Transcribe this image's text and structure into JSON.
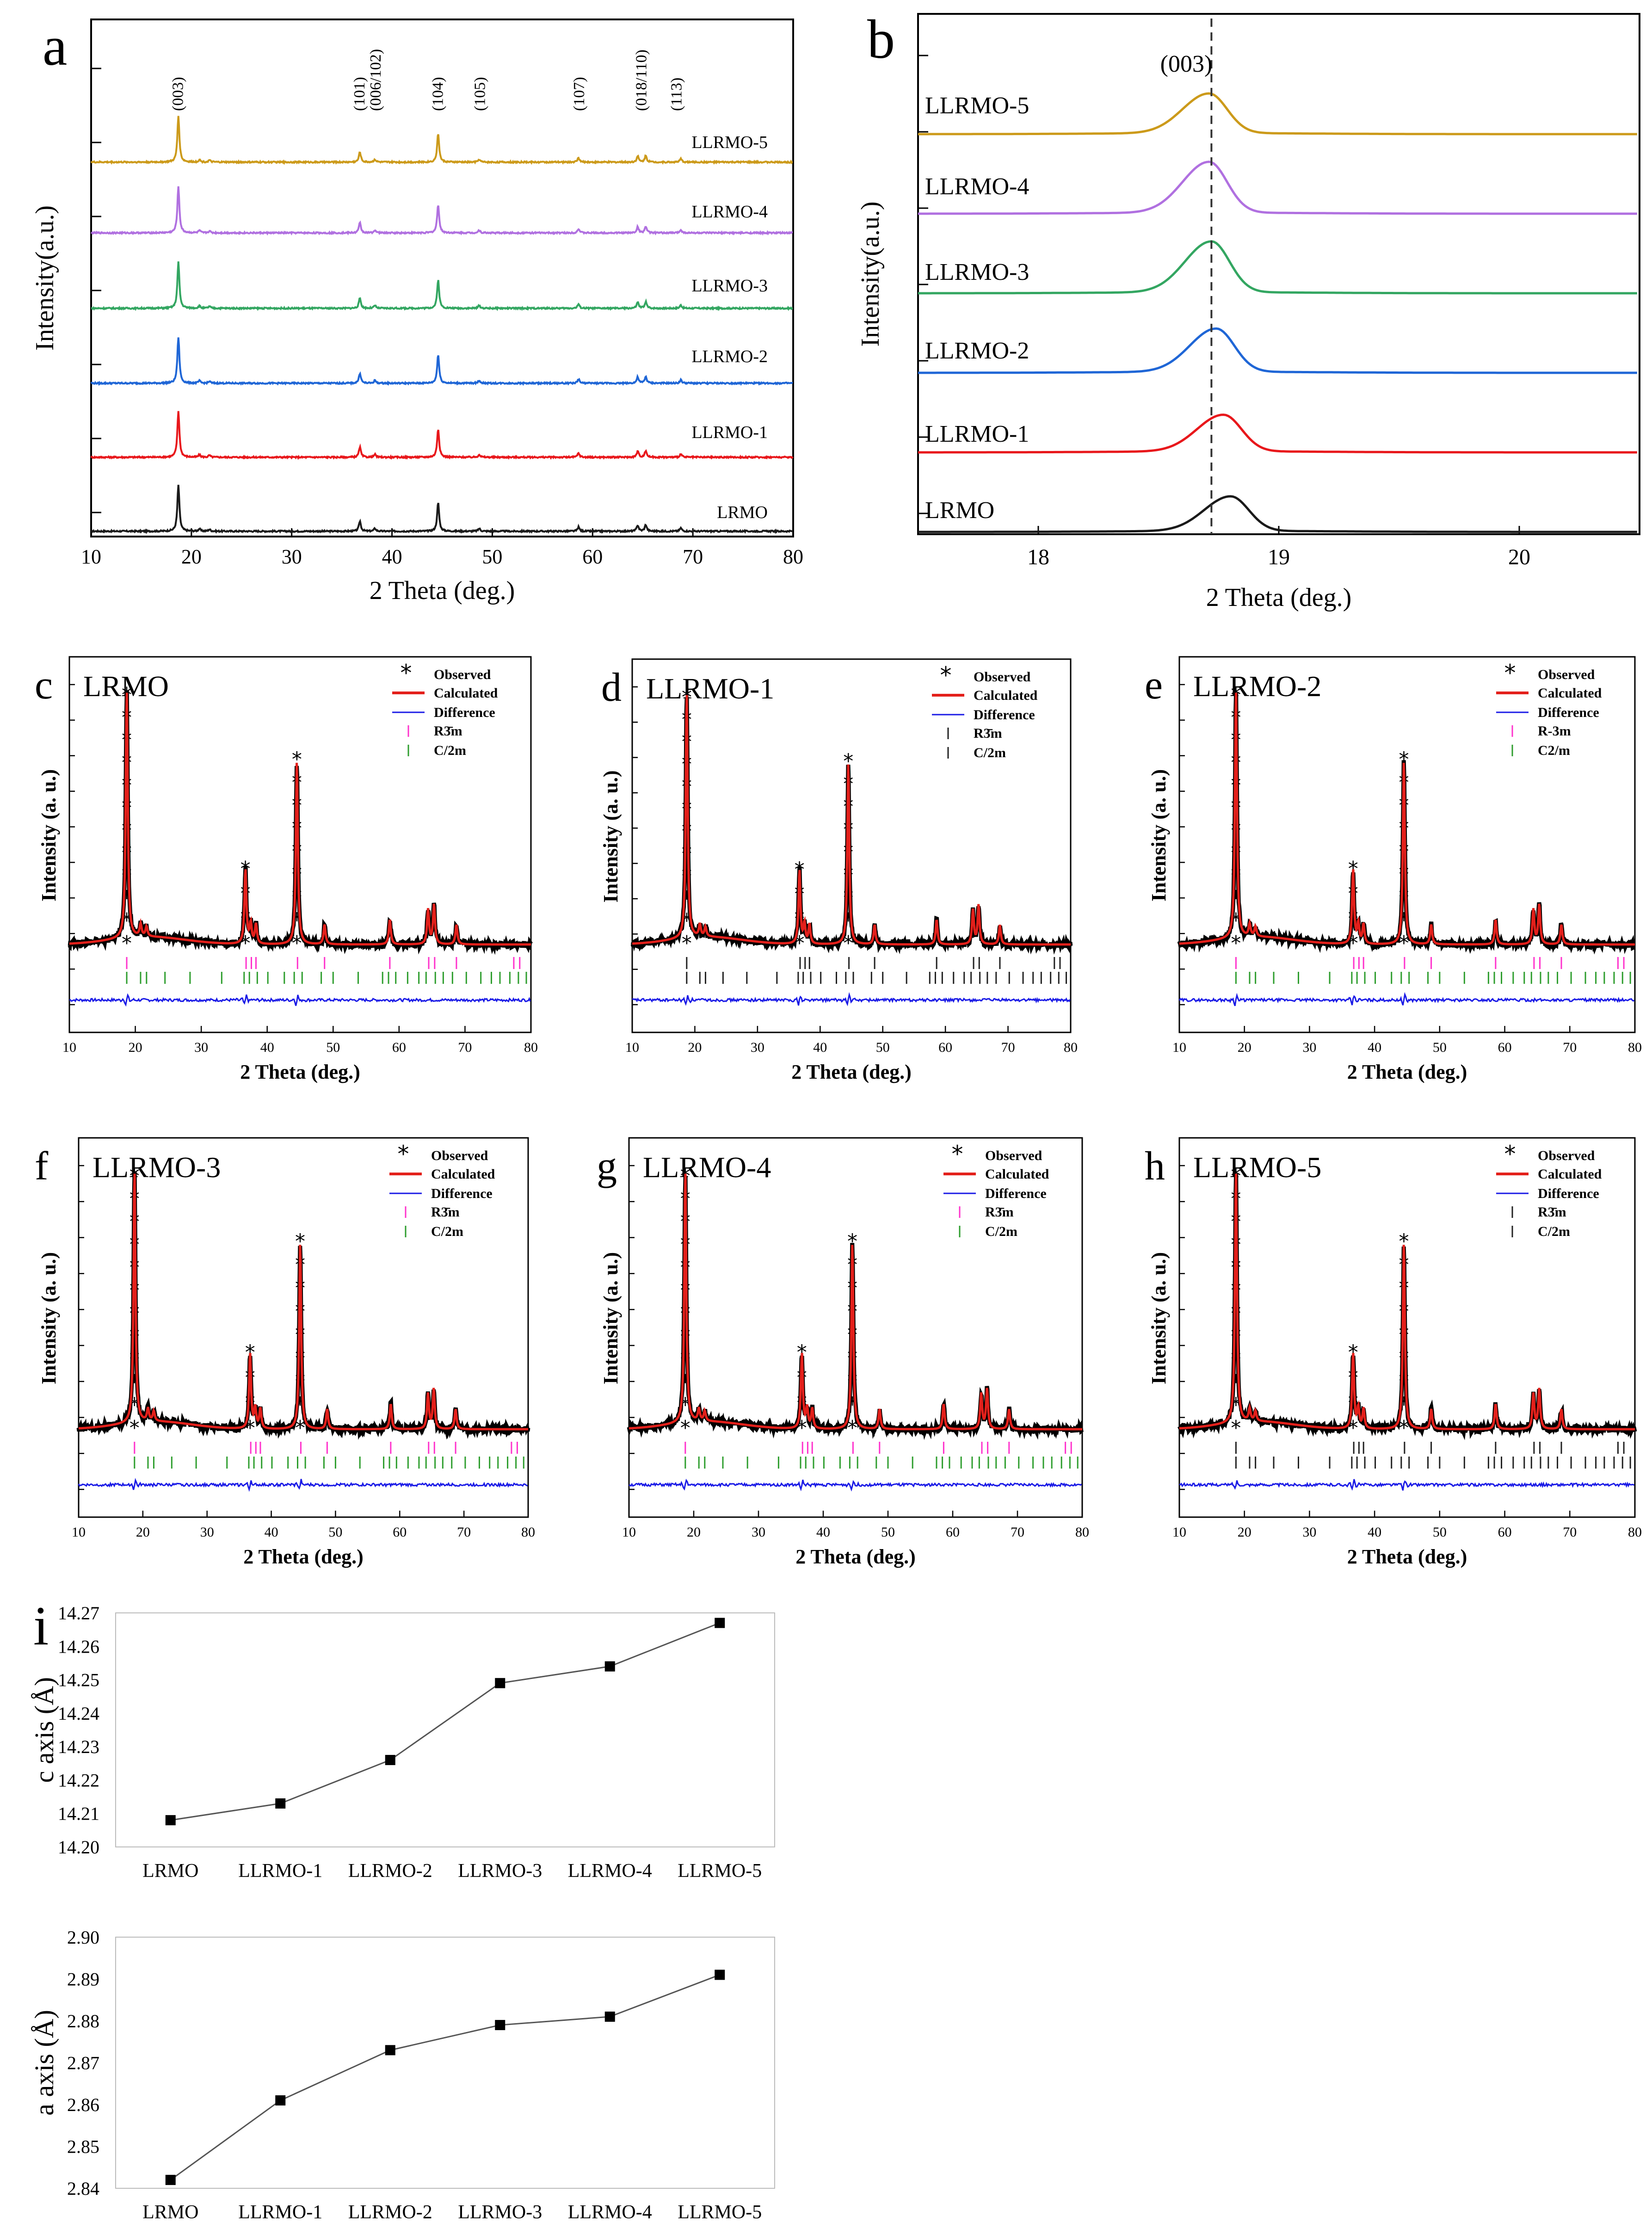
{
  "colors": {
    "LRMO": "#1a1a1a",
    "LLRMO-1": "#e8171b",
    "LLRMO-2": "#1f66d6",
    "LLRMO-3": "#33a661",
    "LLRMO-4": "#b070e0",
    "LLRMO-5": "#cc9a1a",
    "observed": "#000000",
    "calculated": "#e3201b",
    "difference": "#1a1ae6",
    "r3m_pink": "#ff33cc",
    "c2m_green": "#2f9e2f",
    "grey_line": "#555555"
  },
  "chart_data": [
    {
      "id": "a",
      "type": "line",
      "panel_letter": "a",
      "xlabel": "2 Theta (deg.)",
      "ylabel": "Intensity(a.u.)",
      "xlim": [
        10,
        80
      ],
      "xticks": [
        10,
        20,
        30,
        40,
        50,
        60,
        70,
        80
      ],
      "series": [
        "LRMO",
        "LLRMO-1",
        "LLRMO-2",
        "LLRMO-3",
        "LLRMO-4",
        "LLRMO-5"
      ],
      "peaks": [
        {
          "pos": 18.7,
          "h": 1.0
        },
        {
          "pos": 20.8,
          "h": 0.05
        },
        {
          "pos": 21.8,
          "h": 0.04
        },
        {
          "pos": 36.8,
          "h": 0.22
        },
        {
          "pos": 38.3,
          "h": 0.06
        },
        {
          "pos": 44.6,
          "h": 0.62
        },
        {
          "pos": 48.7,
          "h": 0.06
        },
        {
          "pos": 58.6,
          "h": 0.09
        },
        {
          "pos": 64.5,
          "h": 0.13
        },
        {
          "pos": 65.3,
          "h": 0.14
        },
        {
          "pos": 68.8,
          "h": 0.07
        }
      ],
      "hkl_labels": [
        {
          "label": "(003)",
          "pos": 18.7
        },
        {
          "label": "(101)",
          "pos": 36.8
        },
        {
          "label": "(006/102)",
          "pos": 38.4
        },
        {
          "label": "(104)",
          "pos": 44.6
        },
        {
          "label": "(105)",
          "pos": 48.8
        },
        {
          "label": "(107)",
          "pos": 58.7
        },
        {
          "label": "(018/110)",
          "pos": 64.9
        },
        {
          "label": "(113)",
          "pos": 68.4
        }
      ]
    },
    {
      "id": "b",
      "type": "line",
      "panel_letter": "b",
      "xlabel": "2 Theta (deg.)",
      "ylabel": "Intensity(a.u.)",
      "xlim": [
        17.5,
        20.5
      ],
      "xticks": [
        18,
        19,
        20
      ],
      "reference_line_x": 18.72,
      "annotation": "(003)",
      "series": [
        {
          "name": "LRMO",
          "center": 18.8,
          "height": 0.68
        },
        {
          "name": "LLRMO-1",
          "center": 18.77,
          "height": 0.72
        },
        {
          "name": "LLRMO-2",
          "center": 18.74,
          "height": 0.85
        },
        {
          "name": "LLRMO-3",
          "center": 18.72,
          "height": 1.0
        },
        {
          "name": "LLRMO-4",
          "center": 18.71,
          "height": 1.0
        },
        {
          "name": "LLRMO-5",
          "center": 18.71,
          "height": 0.78
        }
      ]
    },
    {
      "id": "c",
      "type": "line",
      "panel_letter": "c",
      "sample": "LRMO",
      "xlabel": "2 Theta (deg.)",
      "ylabel": "Intensity (a. u.)",
      "xlim": [
        10,
        80
      ],
      "xticks": [
        10,
        20,
        30,
        40,
        50,
        60,
        70,
        80
      ],
      "legend": [
        "Observed",
        "Calculated",
        "Difference",
        "R3̄m",
        "C/2m"
      ],
      "legend_style": "pink-r3m"
    },
    {
      "id": "d",
      "type": "line",
      "panel_letter": "d",
      "sample": "LLRMO-1",
      "xlabel": "2 Theta (deg.)",
      "ylabel": "Intensity (a. u.)",
      "xlim": [
        10,
        80
      ],
      "xticks": [
        10,
        20,
        30,
        40,
        50,
        60,
        70,
        80
      ],
      "legend": [
        "Observed",
        "Calculated",
        "Difference",
        "R3̄m",
        "C/2m"
      ],
      "legend_style": "black-ticks"
    },
    {
      "id": "e",
      "type": "line",
      "panel_letter": "e",
      "sample": "LLRMO-2",
      "xlabel": "2 Theta (deg.)",
      "ylabel": "Intensity (a. u.)",
      "xlim": [
        10,
        80
      ],
      "xticks": [
        10,
        20,
        30,
        40,
        50,
        60,
        70,
        80
      ],
      "legend": [
        "Observed",
        "Calculated",
        "Difference",
        "R-3m",
        "C2/m"
      ],
      "legend_style": "pink-r3m"
    },
    {
      "id": "f",
      "type": "line",
      "panel_letter": "f",
      "sample": "LLRMO-3",
      "xlabel": "2 Theta (deg.)",
      "ylabel": "Intensity (a. u.)",
      "xlim": [
        10,
        80
      ],
      "xticks": [
        10,
        20,
        30,
        40,
        50,
        60,
        70,
        80
      ],
      "legend": [
        "Observed",
        "Calculated",
        "Difference",
        "R3̄m",
        "C/2m"
      ],
      "legend_style": "pink-r3m"
    },
    {
      "id": "g",
      "type": "line",
      "panel_letter": "g",
      "sample": "LLRMO-4",
      "xlabel": "2 Theta (deg.)",
      "ylabel": "Intensity (a. u.)",
      "xlim": [
        10,
        80
      ],
      "xticks": [
        10,
        20,
        30,
        40,
        50,
        60,
        70,
        80
      ],
      "legend": [
        "Observed",
        "Calculated",
        "Difference",
        "R3̄m",
        "C/2m"
      ],
      "legend_style": "pink-r3m"
    },
    {
      "id": "h",
      "type": "line",
      "panel_letter": "h",
      "sample": "LLRMO-5",
      "xlabel": "2 Theta (deg.)",
      "ylabel": "Intensity (a. u.)",
      "xlim": [
        10,
        80
      ],
      "xticks": [
        10,
        20,
        30,
        40,
        50,
        60,
        70,
        80
      ],
      "legend": [
        "Observed",
        "Calculated",
        "Difference",
        "R3̄m",
        "C/2m"
      ],
      "legend_style": "black-ticks"
    },
    {
      "id": "i_c",
      "type": "line",
      "panel_letter": "i",
      "ylabel": "c axis (Å)",
      "categories": [
        "LRMO",
        "LLRMO-1",
        "LLRMO-2",
        "LLRMO-3",
        "LLRMO-4",
        "LLRMO-5"
      ],
      "values": [
        14.208,
        14.213,
        14.226,
        14.249,
        14.254,
        14.267
      ],
      "ylim": [
        14.2,
        14.27
      ],
      "yticks": [
        "14.20",
        "14.21",
        "14.22",
        "14.23",
        "14.24",
        "14.25",
        "14.26",
        "14.27"
      ]
    },
    {
      "id": "i_a",
      "type": "line",
      "ylabel": "a axis (Å)",
      "categories": [
        "LRMO",
        "LLRMO-1",
        "LLRMO-2",
        "LLRMO-3",
        "LLRMO-4",
        "LLRMO-5"
      ],
      "values": [
        2.842,
        2.861,
        2.873,
        2.879,
        2.881,
        2.891
      ],
      "ylim": [
        2.84,
        2.9
      ],
      "yticks": [
        "2.84",
        "2.85",
        "2.86",
        "2.87",
        "2.88",
        "2.89",
        "2.90"
      ]
    }
  ]
}
